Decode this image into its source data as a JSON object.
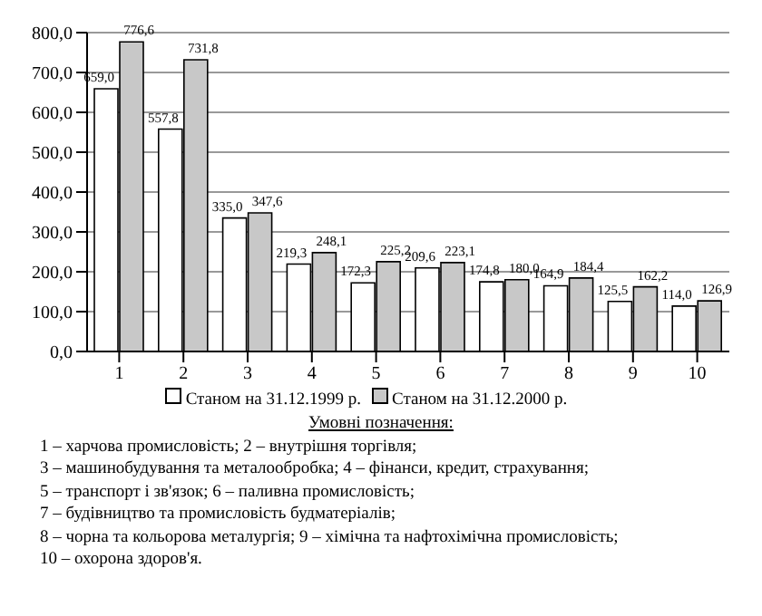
{
  "chart_data": {
    "type": "bar",
    "categories": [
      "1",
      "2",
      "3",
      "4",
      "5",
      "6",
      "7",
      "8",
      "9",
      "10"
    ],
    "series": [
      {
        "name": "Станом на 31.12.1999 р.",
        "color": "#ffffff",
        "values": [
          659.0,
          557.8,
          335.0,
          219.3,
          172.3,
          209.6,
          174.8,
          164.9,
          125.5,
          114.0
        ],
        "value_labels": [
          "659,0",
          "557,8",
          "335,0",
          "219,3",
          "172,3",
          "209,6",
          "174,8",
          "164,9",
          "125,5",
          "114,0"
        ]
      },
      {
        "name": "Станом на 31.12.2000 р.",
        "color": "#c8c8c8",
        "values": [
          776.6,
          731.8,
          347.6,
          248.1,
          225.2,
          223.1,
          180.0,
          184.4,
          162.2,
          126.9
        ],
        "value_labels": [
          "776,6",
          "731,8",
          "347,6",
          "248,1",
          "225,2",
          "223,1",
          "180,0",
          "184,4",
          "162,2",
          "126,9"
        ]
      }
    ],
    "ylim": [
      0,
      800
    ],
    "yticks": [
      {
        "value": 0,
        "label": "0,0"
      },
      {
        "value": 100,
        "label": "100,0"
      },
      {
        "value": 200,
        "label": "200,0"
      },
      {
        "value": 300,
        "label": "300,0"
      },
      {
        "value": 400,
        "label": "400,0"
      },
      {
        "value": 500,
        "label": "500,0"
      },
      {
        "value": 600,
        "label": "600,0"
      },
      {
        "value": 700,
        "label": "700,0"
      },
      {
        "value": 800,
        "label": "800,0"
      }
    ],
    "grid": "y",
    "legend": "bottom",
    "annotations": [
      "Умовні позначення:",
      "1 – харчова промисловість; 2 – внутрішня торгівля;",
      "3 – машинобудування та металообробка; 4 – фінанси, кредит, страхування;",
      "5 – транспорт і зв'язок; 6 – паливна промисловість;",
      "7 – будівництво та промисловість будматеріалів;",
      "8 – чорна та кольорова металургія; 9 – хімічна та нафтохімічна промисловість;",
      "10 – охорона здоров'я."
    ]
  }
}
